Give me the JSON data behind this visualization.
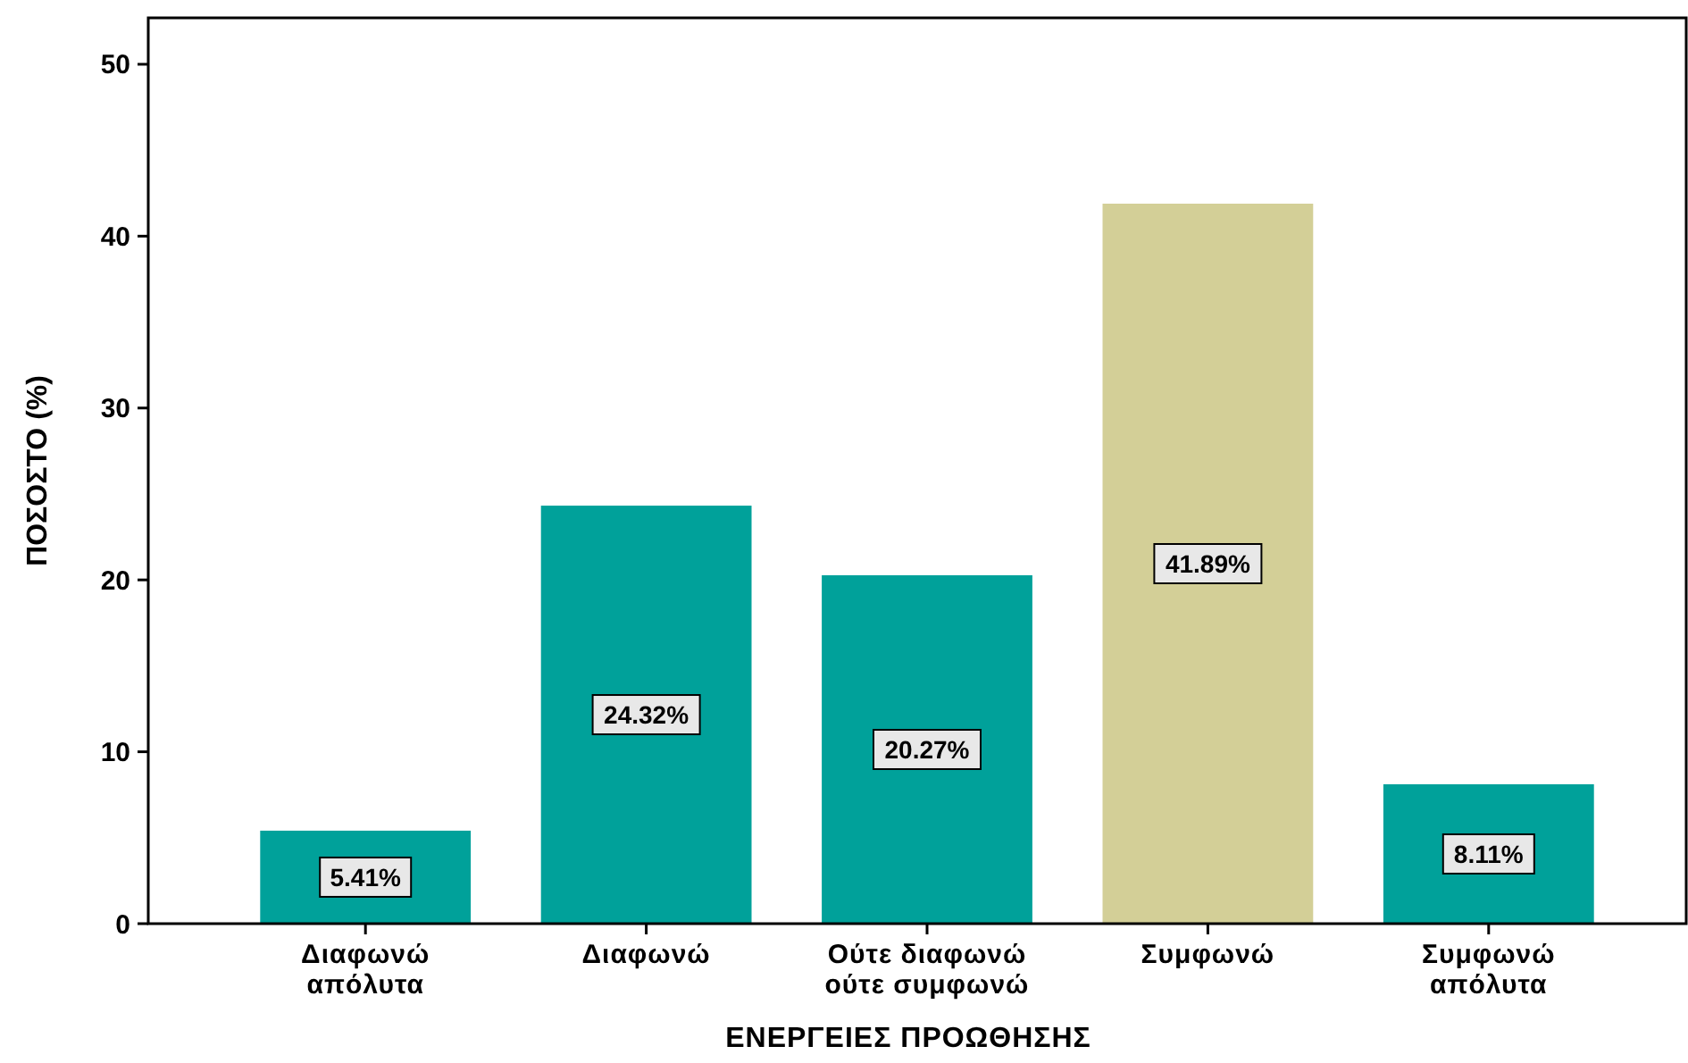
{
  "chart_data": {
    "type": "bar",
    "xlabel": "ΕΝΕΡΓΕΙΕΣ ΠΡΟΩΘΗΣΗΣ",
    "ylabel": "ΠΟΣΟΣΤΟ (%)",
    "categories": [
      "Διαφωνώ απόλυτα",
      "Διαφωνώ",
      "Ούτε διαφωνώ ούτε συμφωνώ",
      "Συμφωνώ",
      "Συμφωνώ απόλυτα"
    ],
    "values": [
      5.41,
      24.32,
      20.27,
      41.89,
      8.11
    ],
    "colors": [
      "#00a19a",
      "#00a19a",
      "#00a19a",
      "#d3cf97",
      "#00a19a"
    ],
    "value_labels": [
      "5.41%",
      "24.32%",
      "20.27%",
      "41.89%",
      "8.11%"
    ],
    "ylim": [
      0,
      52.7
    ],
    "yticks": [
      0,
      10,
      20,
      30,
      40,
      50
    ],
    "grid": false
  }
}
